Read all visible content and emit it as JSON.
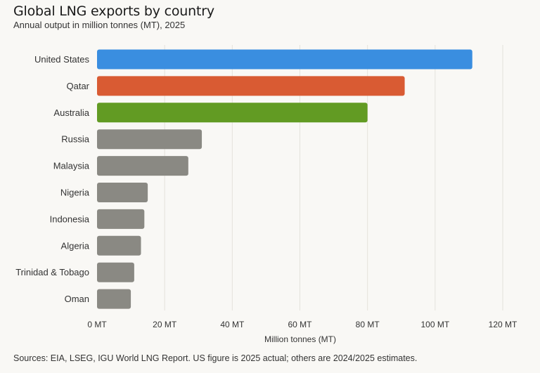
{
  "chart_data": {
    "type": "bar",
    "orientation": "horizontal",
    "title": "Global LNG exports by country",
    "subtitle": "Annual output in million tonnes (MT), 2025",
    "categories": [
      "United States",
      "Qatar",
      "Australia",
      "Russia",
      "Malaysia",
      "Nigeria",
      "Indonesia",
      "Algeria",
      "Trinidad & Tobago",
      "Oman"
    ],
    "values": [
      111,
      91,
      80,
      31,
      27,
      15,
      14,
      13,
      11,
      10
    ],
    "colors": [
      "#3a8ee0",
      "#d95b33",
      "#629b23",
      "#8a8983",
      "#8a8983",
      "#8a8983",
      "#8a8983",
      "#8a8983",
      "#8a8983",
      "#8a8983"
    ],
    "xlabel": "Million tonnes (MT)",
    "ylabel": "",
    "xlim": [
      0,
      120
    ],
    "xticks": [
      0,
      20,
      40,
      60,
      80,
      100,
      120
    ],
    "xtick_labels": [
      "0 MT",
      "20 MT",
      "40 MT",
      "60 MT",
      "80 MT",
      "100 MT",
      "120 MT"
    ],
    "grid": true,
    "legend": "none"
  },
  "source_note": "Sources: EIA, LSEG, IGU World LNG Report. US figure is 2025 actual; others are 2024/2025 estimates."
}
